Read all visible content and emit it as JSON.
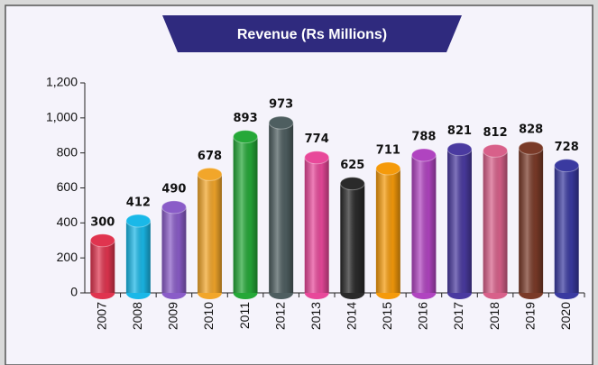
{
  "chart_data": {
    "type": "bar",
    "title": "Revenue (Rs Millions)",
    "categories": [
      "2007",
      "2008",
      "2009",
      "2010",
      "2011",
      "2012",
      "2013",
      "2014",
      "2015",
      "2016",
      "2017",
      "2018",
      "2019",
      "2020"
    ],
    "values": [
      300,
      412,
      490,
      678,
      893,
      973,
      774,
      625,
      711,
      788,
      821,
      812,
      828,
      728
    ],
    "colors": [
      "#e0344f",
      "#1ab8e8",
      "#8a5cc8",
      "#f2a62a",
      "#25a838",
      "#4e5e60",
      "#e8489a",
      "#2a2a2a",
      "#f59a0a",
      "#b044c0",
      "#4a3aa0",
      "#d8608a",
      "#7a3a28",
      "#3a3aa0"
    ],
    "ylim": [
      0,
      1200
    ],
    "yticks": [
      0,
      200,
      400,
      600,
      800,
      {
        "value": 1000,
        "label": "1,000"
      },
      {
        "value": 1200,
        "label": "1,200"
      }
    ]
  }
}
